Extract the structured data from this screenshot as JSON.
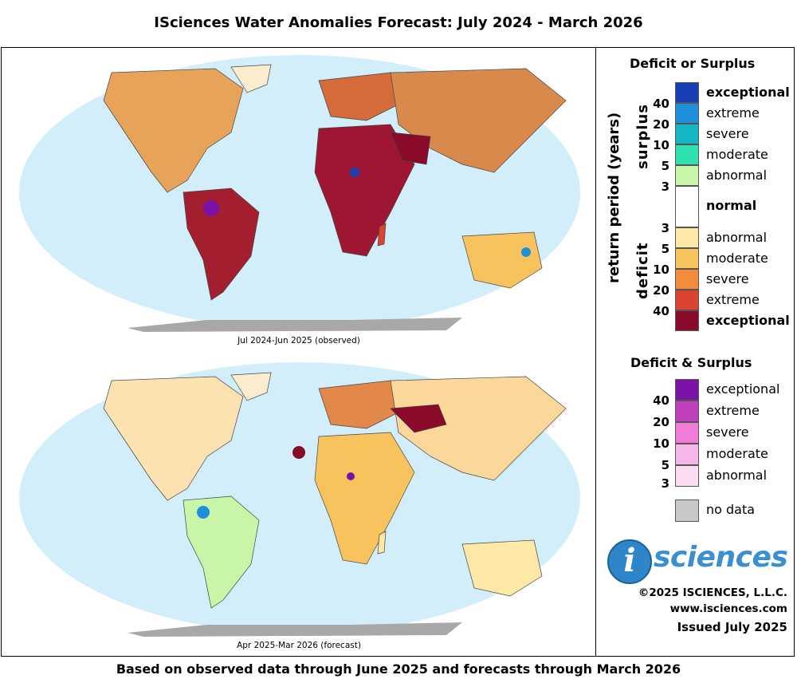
{
  "title": "ISciences Water Anomalies Forecast: July 2024 - March 2026",
  "maps": [
    {
      "caption": "Jul 2024-Jun 2025 (observed)"
    },
    {
      "caption": "Apr 2025-Mar 2026 (forecast)"
    }
  ],
  "footer": "Based on observed data through June 2025 and forecasts through March 2026",
  "legend": {
    "title_main": "Deficit or Surplus",
    "axis_label": "return period (years)",
    "surplus_label": "surplus",
    "deficit_label": "deficit",
    "surplus": [
      {
        "label": "exceptional",
        "color": "#1a3fb5",
        "bold": true
      },
      {
        "label": "extreme",
        "color": "#1f8fdc",
        "bold": false
      },
      {
        "label": "severe",
        "color": "#16b6c7",
        "bold": false
      },
      {
        "label": "moderate",
        "color": "#2fe0b0",
        "bold": false
      },
      {
        "label": "abnormal",
        "color": "#c8f5a8",
        "bold": false
      }
    ],
    "surplus_numbers": [
      "40",
      "20",
      "10",
      "5",
      "3"
    ],
    "normal": {
      "label": "normal",
      "color": "#ffffff"
    },
    "deficit_numbers": [
      "3",
      "5",
      "10",
      "20",
      "40"
    ],
    "deficit": [
      {
        "label": "abnormal",
        "color": "#fde8a5",
        "bold": false
      },
      {
        "label": "moderate",
        "color": "#f8c35c",
        "bold": false
      },
      {
        "label": "severe",
        "color": "#f38c3a",
        "bold": false
      },
      {
        "label": "extreme",
        "color": "#d94330",
        "bold": false
      },
      {
        "label": "exceptional",
        "color": "#8a0a2a",
        "bold": true
      }
    ],
    "title_both": "Deficit & Surplus",
    "both": [
      {
        "label": "exceptional",
        "color": "#7a12a8"
      },
      {
        "label": "extreme",
        "color": "#c23fbe"
      },
      {
        "label": "severe",
        "color": "#f07cd8"
      },
      {
        "label": "moderate",
        "color": "#f7b6e8"
      },
      {
        "label": "abnormal",
        "color": "#fbdcf0"
      }
    ],
    "both_numbers": [
      "40",
      "20",
      "10",
      "5",
      "3"
    ],
    "no_data": {
      "label": "no data",
      "color": "#c8c8c8"
    }
  },
  "branding": {
    "logo_letter": "i",
    "logo_word": "sciences",
    "copyright": "©2025 ISCIENCES, L.L.C.",
    "website": "www.isciences.com",
    "issued": "Issued July 2025"
  },
  "colors": {
    "ocean": "#d3eefb",
    "land": "#fbeccd",
    "antarctica": "#a8a8a8"
  }
}
